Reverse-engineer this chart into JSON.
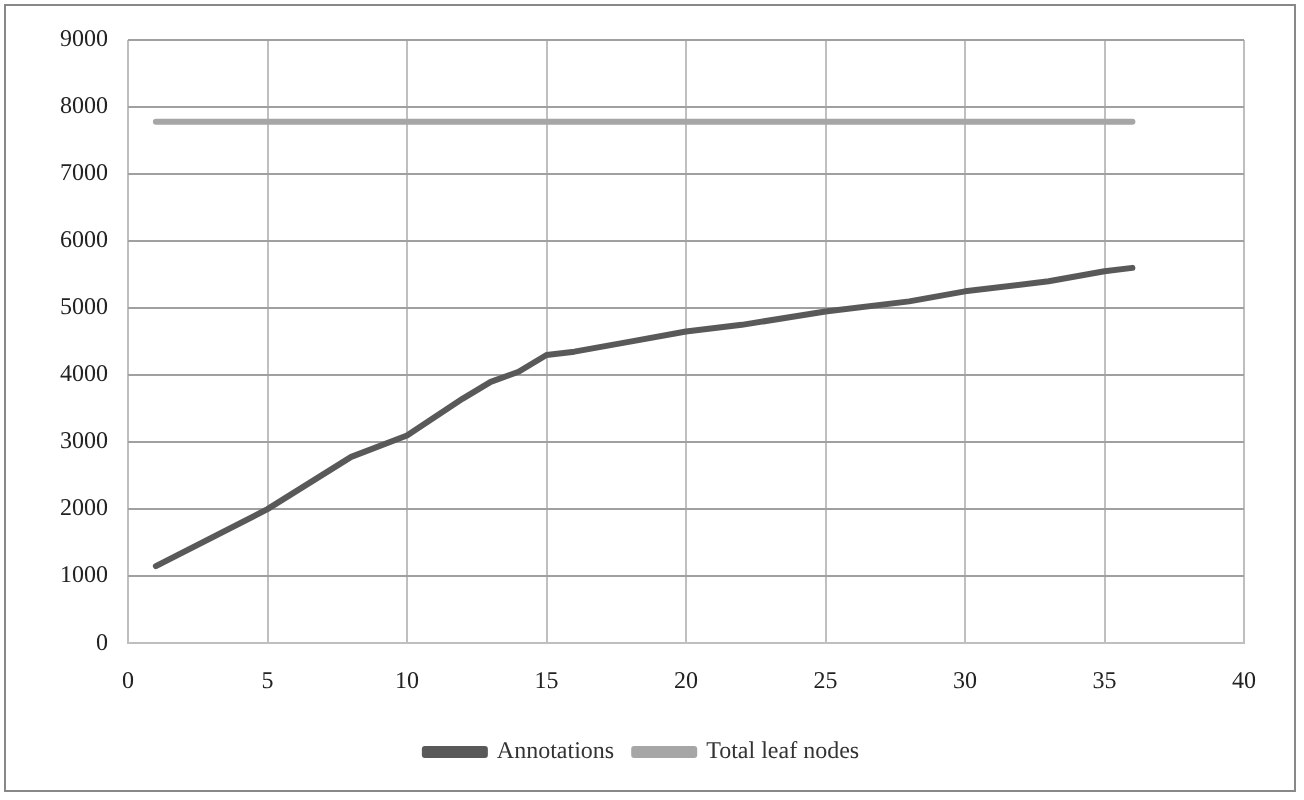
{
  "chart_data": {
    "type": "line",
    "x": [
      1,
      5,
      8,
      10,
      12,
      13,
      14,
      15,
      16,
      18,
      20,
      22,
      25,
      28,
      30,
      33,
      35,
      36
    ],
    "series": [
      {
        "name": "Annotations",
        "color": "#595959",
        "values": [
          1150,
          2000,
          2780,
          3100,
          3650,
          3900,
          4050,
          4300,
          4350,
          4500,
          4650,
          4750,
          4950,
          5100,
          5250,
          5400,
          5550,
          5600
        ]
      },
      {
        "name": "Total leaf nodes",
        "color": "#a6a6a6",
        "x": [
          1,
          36
        ],
        "values": [
          7780,
          7780
        ]
      }
    ],
    "xlim": [
      0,
      40
    ],
    "xticks": [
      0,
      5,
      10,
      15,
      20,
      25,
      30,
      35,
      40
    ],
    "ylim": [
      0,
      9000
    ],
    "yticks": [
      0,
      1000,
      2000,
      3000,
      4000,
      5000,
      6000,
      7000,
      8000,
      9000
    ],
    "grid": true,
    "legend": "bottom",
    "marker": "none",
    "line_style": "solid"
  }
}
